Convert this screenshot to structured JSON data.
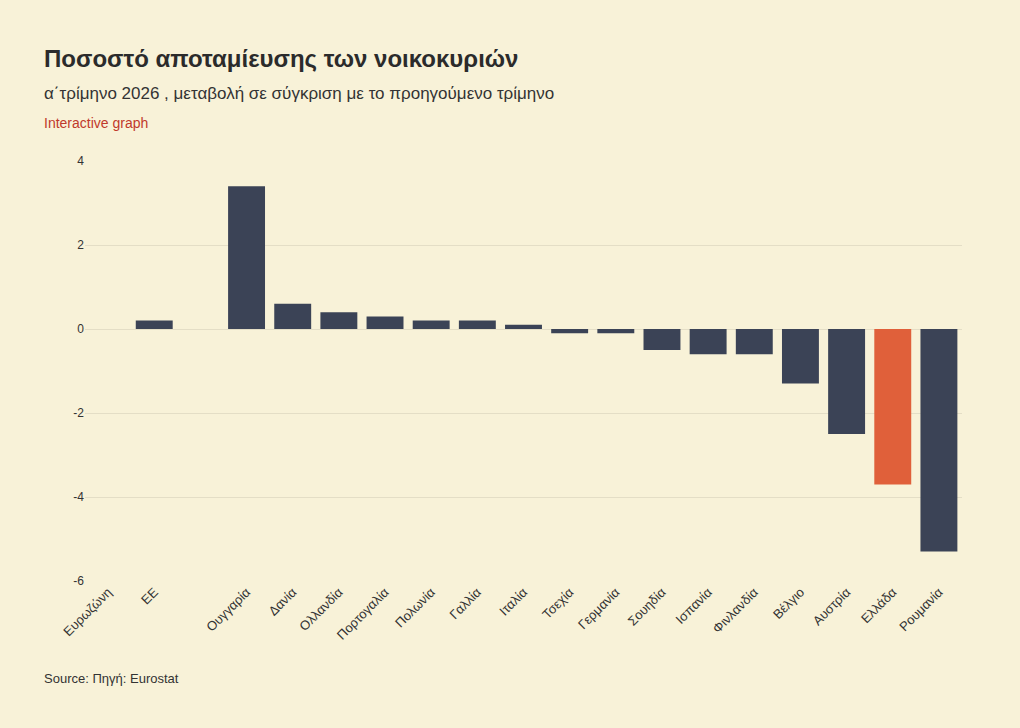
{
  "chart_data": {
    "type": "bar",
    "title": "Ποσοστό αποταμίευσης των νοικοκυριών",
    "subtitle": "α΄τρίμηνο 2026 , μεταβολή σε σύγκριση με το προηγούμενο τρίμηνο",
    "annotations": [
      "Interactive graph"
    ],
    "source": "Source: Πηγή: Eurostat",
    "categories": [
      "Ευρωζώνη",
      "ΕΕ",
      null,
      "Ουγγαρία",
      "Δανία",
      "Ολλανδία",
      "Πορτογαλία",
      "Πολωνία",
      "Γαλλία",
      "Ιταλία",
      "Τσεχία",
      "Γερμανία",
      "Σουηδία",
      "Ισπανία",
      "Φινλανδία",
      "Βέλγιο",
      "Αυστρία",
      "Ελλάδα",
      "Ρουμανία"
    ],
    "values": [
      0,
      0.2,
      null,
      3.4,
      0.6,
      0.4,
      0.3,
      0.2,
      0.2,
      0.1,
      -0.1,
      -0.1,
      -0.5,
      -0.6,
      -0.6,
      -1.3,
      -2.5,
      -3.7,
      -5.3
    ],
    "colors": [
      "#3b4356",
      "#3b4356",
      "#3b4356",
      "#3b4356",
      "#3b4356",
      "#3b4356",
      "#3b4356",
      "#3b4356",
      "#3b4356",
      "#3b4356",
      "#3b4356",
      "#3b4356",
      "#3b4356",
      "#3b4356",
      "#3b4356",
      "#3b4356",
      "#3b4356",
      "#e0603a",
      "#3b4356"
    ],
    "ylim": [
      -6,
      4
    ],
    "yticks": [
      -6,
      -4,
      -2,
      0,
      2,
      4
    ],
    "grid": true
  }
}
